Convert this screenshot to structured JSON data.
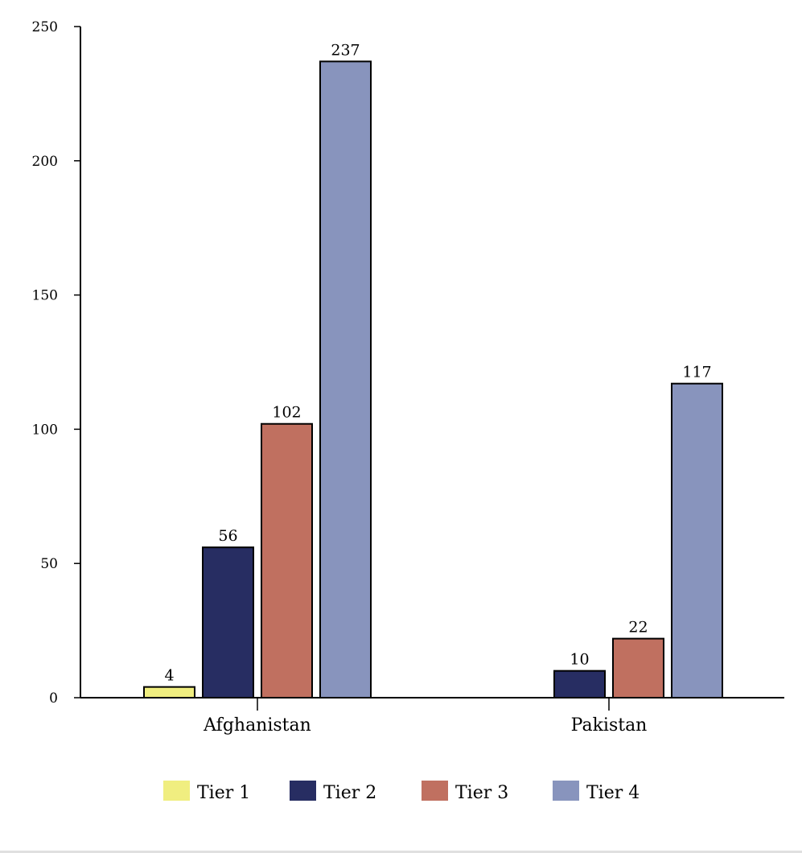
{
  "chart_data": {
    "type": "bar",
    "title": "",
    "xlabel": "",
    "ylabel": "",
    "ylim": [
      0,
      250
    ],
    "yticks": [
      "0",
      "50",
      "100",
      "150",
      "200",
      "250"
    ],
    "categories": [
      "Afghanistan",
      "Pakistan"
    ],
    "series": [
      {
        "name": "Tier 1",
        "color": "#f0ee80",
        "values": [
          4,
          0
        ],
        "labels": [
          "4",
          ""
        ]
      },
      {
        "name": "Tier 2",
        "color": "#272d62",
        "values": [
          56,
          10
        ],
        "labels": [
          "56",
          "10"
        ]
      },
      {
        "name": "Tier 3",
        "color": "#c07060",
        "values": [
          102,
          22
        ],
        "labels": [
          "102",
          "22"
        ]
      },
      {
        "name": "Tier 4",
        "color": "#8894bd",
        "values": [
          237,
          117
        ],
        "labels": [
          "237",
          "117"
        ]
      }
    ],
    "legend": "bottom",
    "grid": false
  }
}
